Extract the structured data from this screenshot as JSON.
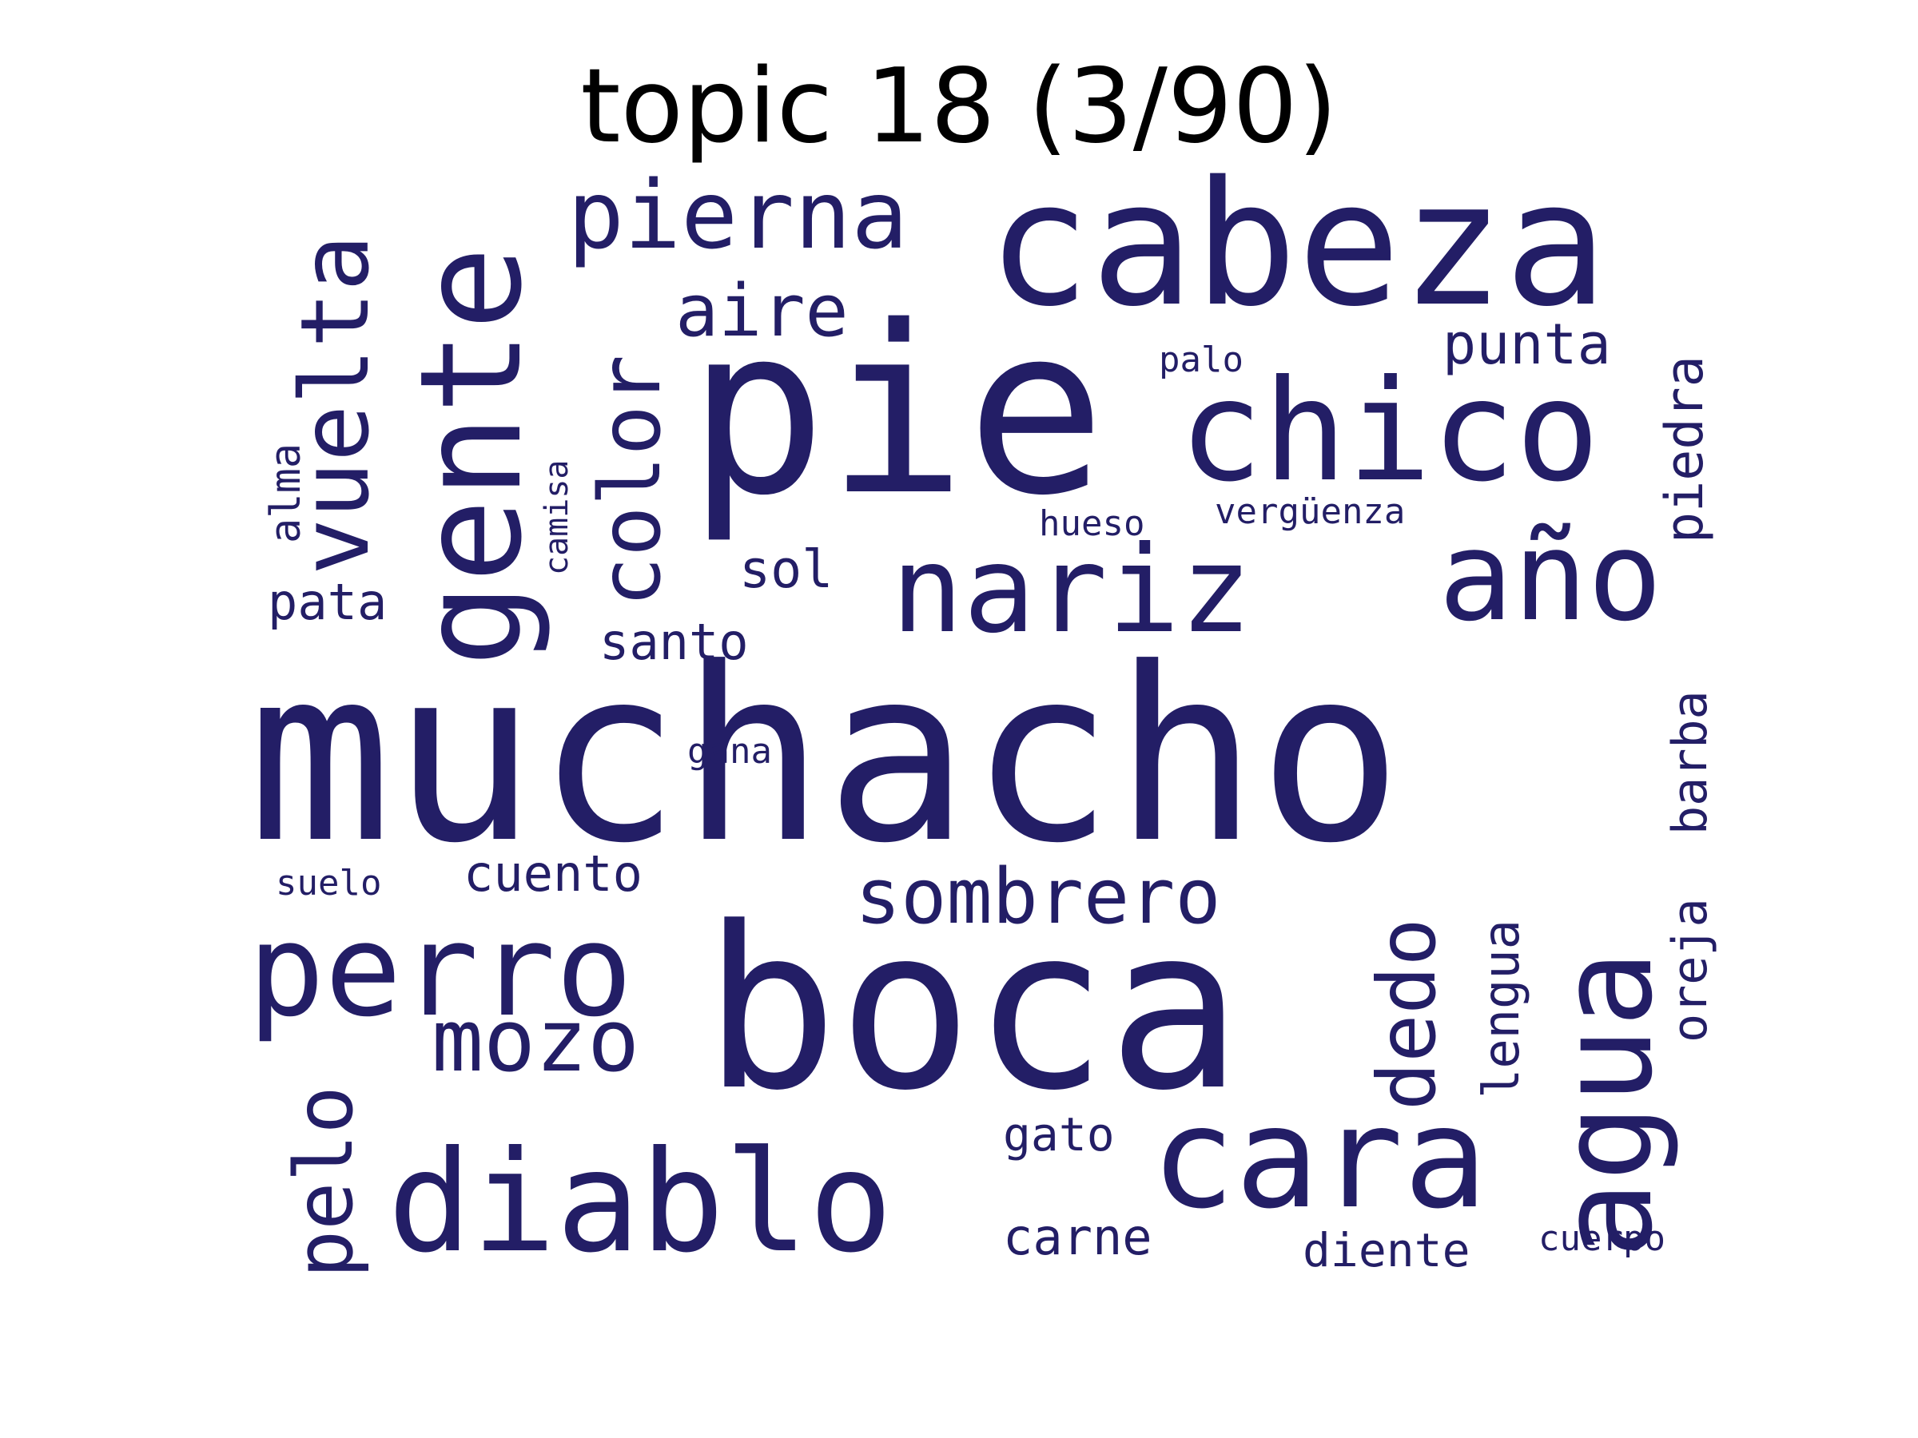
{
  "title": "topic 18 (3/90)",
  "colors": {
    "word": "#231e66",
    "title": "#000000",
    "background": "#ffffff"
  },
  "words": [
    {
      "text": "muchacho",
      "weight": 1.0
    },
    {
      "text": "boca",
      "weight": 0.9
    },
    {
      "text": "pie",
      "weight": 0.85
    },
    {
      "text": "cabeza",
      "weight": 0.65
    },
    {
      "text": "gente",
      "weight": 0.55
    },
    {
      "text": "chico",
      "weight": 0.55
    },
    {
      "text": "nariz",
      "weight": 0.5
    },
    {
      "text": "año",
      "weight": 0.5
    },
    {
      "text": "cara",
      "weight": 0.55
    },
    {
      "text": "agua",
      "weight": 0.55
    },
    {
      "text": "diablo",
      "weight": 0.5
    },
    {
      "text": "perro",
      "weight": 0.48
    },
    {
      "text": "pierna",
      "weight": 0.4
    },
    {
      "text": "vuelta",
      "weight": 0.4
    },
    {
      "text": "color",
      "weight": 0.36
    },
    {
      "text": "mozo",
      "weight": 0.36
    },
    {
      "text": "dedo",
      "weight": 0.34
    },
    {
      "text": "pelo",
      "weight": 0.34
    },
    {
      "text": "sombrero",
      "weight": 0.32
    },
    {
      "text": "aire",
      "weight": 0.3
    },
    {
      "text": "punta",
      "weight": 0.24
    },
    {
      "text": "piedra",
      "weight": 0.22
    },
    {
      "text": "sol",
      "weight": 0.22
    },
    {
      "text": "santo",
      "weight": 0.22
    },
    {
      "text": "pata",
      "weight": 0.22
    },
    {
      "text": "cuento",
      "weight": 0.22
    },
    {
      "text": "lengua",
      "weight": 0.22
    },
    {
      "text": "oreja",
      "weight": 0.22
    },
    {
      "text": "barba",
      "weight": 0.22
    },
    {
      "text": "carne",
      "weight": 0.22
    },
    {
      "text": "diente",
      "weight": 0.22
    },
    {
      "text": "gato",
      "weight": 0.2
    },
    {
      "text": "alma",
      "weight": 0.18
    },
    {
      "text": "palo",
      "weight": 0.16
    },
    {
      "text": "hueso",
      "weight": 0.16
    },
    {
      "text": "vergüenza",
      "weight": 0.16
    },
    {
      "text": "camisa",
      "weight": 0.14
    },
    {
      "text": "gana",
      "weight": 0.16
    },
    {
      "text": "suelo",
      "weight": 0.16
    },
    {
      "text": "cuerpo",
      "weight": 0.16
    }
  ]
}
